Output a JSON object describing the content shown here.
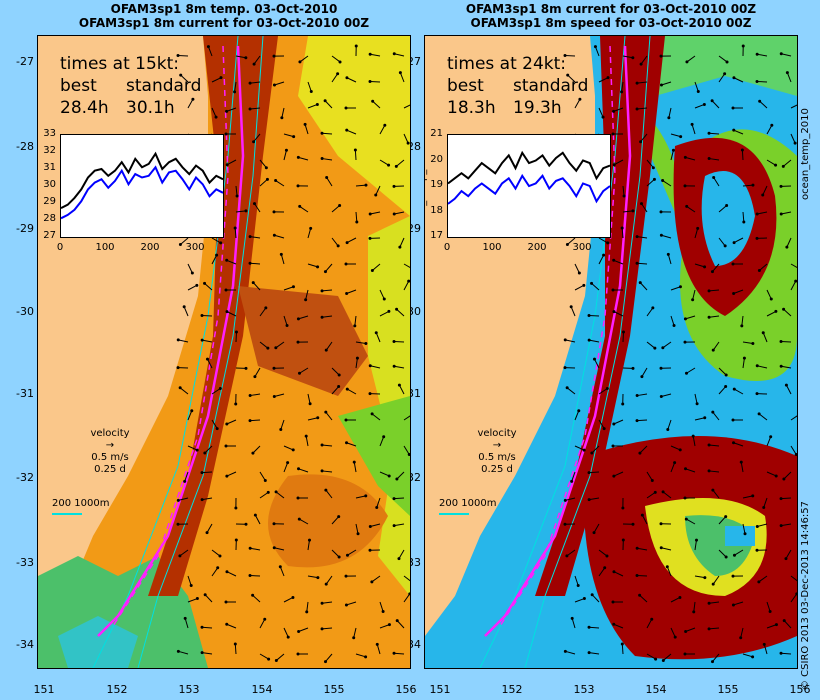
{
  "left": {
    "title_line1": "OFAM3sp1 8m temp. 03-Oct-2010",
    "title_line2": "OFAM3sp1 8m current for 03-Oct-2010 00Z",
    "times_heading": "times at 15kt:",
    "best_label": "best",
    "standard_label": "standard",
    "best_value": "28.4h",
    "standard_value": "30.1h",
    "inset_yticks": [
      "33",
      "32",
      "31",
      "30",
      "29",
      "28",
      "27"
    ],
    "inset_xticks": [
      "0",
      "100",
      "200",
      "300"
    ],
    "velocity_label": "velocity",
    "velocity_speed": "0.5 m/s",
    "velocity_time": "0.25 d",
    "scale_label": "200  1000m"
  },
  "right": {
    "title_line1": "OFAM3sp1 8m current for 03-Oct-2010 00Z",
    "title_line2": "OFAM3sp1 8m speed for 03-Oct-2010 00Z",
    "times_heading": "times at 24kt:",
    "best_label": "best",
    "standard_label": "standard",
    "best_value": "18.3h",
    "standard_value": "19.3h",
    "inset_yticks": [
      "21",
      "20",
      "19",
      "18",
      "17"
    ],
    "inset_xticks": [
      "0",
      "100",
      "200",
      "300"
    ],
    "inset_side_label": "ocean_temp_2010",
    "outer_side_label": "ocean_temp_2010",
    "velocity_label": "velocity",
    "velocity_speed": "0.5 m/s",
    "velocity_time": "0.25 d",
    "scale_label": "200  1000m"
  },
  "y_axis_ticks": [
    "-27",
    "-28",
    "-29",
    "-30",
    "-31",
    "-32",
    "-33",
    "-34"
  ],
  "x_axis_ticks": [
    "151",
    "152",
    "153",
    "154",
    "155",
    "156"
  ],
  "credit": "© CSIRO 2013  03-Dec-2013 14:46:57",
  "colors": {
    "background": "#8fd3ff",
    "land": "#fac78a",
    "warm_orange": "#f29a16",
    "hot_red": "#a00000",
    "route_magenta": "#ff20ff",
    "isobath_cyan": "#00e0e0",
    "best_series": "#000000",
    "standard_series": "#0000ff"
  },
  "chart_data": [
    {
      "type": "line",
      "series": [
        {
          "values": [
            28.7,
            28.9,
            29.3,
            29.8,
            30.5,
            30.9,
            31.0,
            30.6,
            30.9,
            31.4,
            30.8,
            31.6,
            31.1,
            31.3,
            31.9,
            31.0,
            31.4,
            31.6,
            31.1,
            30.7,
            31.2,
            30.9,
            30.2,
            30.6,
            30.4
          ]
        },
        {
          "values": [
            28.1,
            28.3,
            28.6,
            29.1,
            29.8,
            30.2,
            30.4,
            29.9,
            30.3,
            30.9,
            30.1,
            30.7,
            30.5,
            30.6,
            31.1,
            30.2,
            30.8,
            30.9,
            30.4,
            29.8,
            30.5,
            30.1,
            29.4,
            29.8,
            29.6
          ]
        }
      ],
      "x": [
        0,
        15,
        30,
        45,
        60,
        75,
        90,
        105,
        120,
        135,
        150,
        165,
        180,
        195,
        210,
        225,
        240,
        255,
        270,
        285,
        300,
        315,
        330,
        345,
        360
      ],
      "xlim": [
        0,
        360
      ],
      "ylim": [
        27,
        33
      ]
    },
    {
      "type": "line",
      "series": [
        {
          "values": [
            19.1,
            19.3,
            19.5,
            19.3,
            19.6,
            19.9,
            19.7,
            19.5,
            19.9,
            20.2,
            19.7,
            20.3,
            19.9,
            20.0,
            20.2,
            19.8,
            20.1,
            20.3,
            19.9,
            19.6,
            20.0,
            19.9,
            19.3,
            19.7,
            19.8
          ]
        },
        {
          "values": [
            18.3,
            18.5,
            18.8,
            18.6,
            18.9,
            19.1,
            18.9,
            18.7,
            19.1,
            19.3,
            18.9,
            19.4,
            19.0,
            19.1,
            19.4,
            18.9,
            19.2,
            19.3,
            19.0,
            18.6,
            19.1,
            19.0,
            18.4,
            18.8,
            19.0
          ]
        }
      ],
      "x": [
        0,
        15,
        30,
        45,
        60,
        75,
        90,
        105,
        120,
        135,
        150,
        165,
        180,
        195,
        210,
        225,
        240,
        255,
        270,
        285,
        300,
        315,
        330,
        345,
        360
      ],
      "xlim": [
        0,
        360
      ],
      "ylim": [
        17,
        21
      ]
    }
  ]
}
